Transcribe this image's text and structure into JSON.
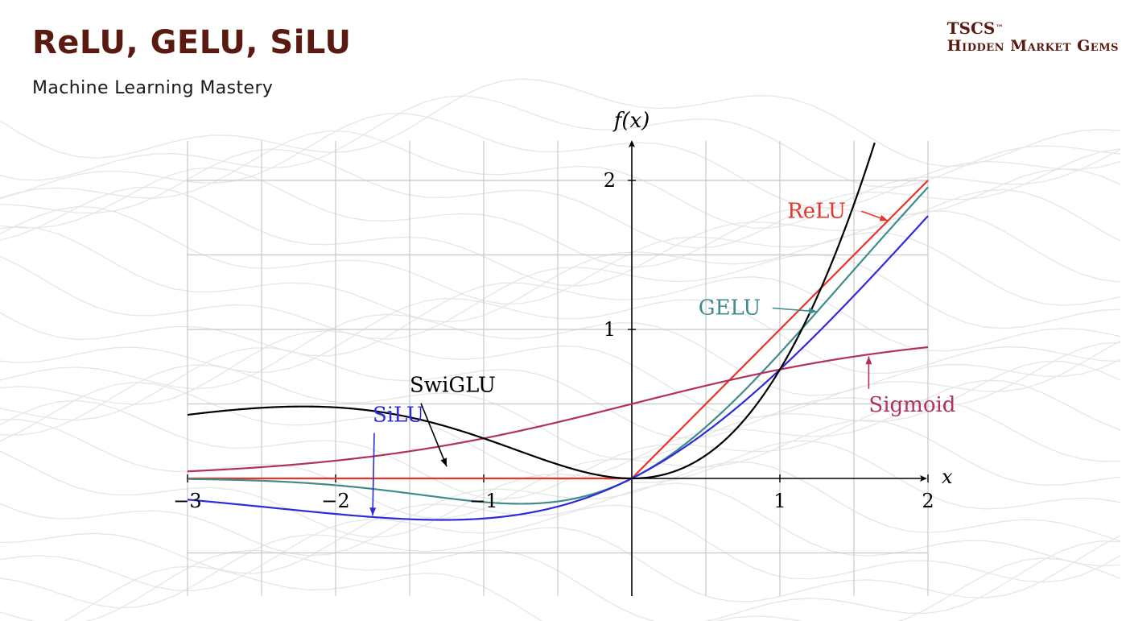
{
  "header": {
    "title": "ReLU, GELU, SiLU",
    "subtitle": "Machine Learning Mastery"
  },
  "brand": {
    "line1": "TSCS",
    "tm": "™",
    "line2": "Hidden Market Gems"
  },
  "colors": {
    "title": "#5a1a10",
    "grid": "#c8c8c8",
    "axis": "#000000"
  },
  "chart_data": {
    "type": "line",
    "xlabel": "x",
    "ylabel": "f(x)",
    "xlim": [
      -3,
      2
    ],
    "ylim": [
      -0.8,
      2.3
    ],
    "grid": true,
    "x_ticks": [
      {
        "value": -3,
        "label": "−3"
      },
      {
        "value": -2,
        "label": "−2"
      },
      {
        "value": -1,
        "label": "−1"
      },
      {
        "value": 1,
        "label": "1"
      },
      {
        "value": 2,
        "label": "2"
      }
    ],
    "y_ticks": [
      {
        "value": 1,
        "label": "1"
      },
      {
        "value": 2,
        "label": "2"
      }
    ],
    "series": [
      {
        "name": "ReLU",
        "color": "#e8352a",
        "fn": "relu"
      },
      {
        "name": "GELU",
        "color": "#3f8c8a",
        "fn": "gelu"
      },
      {
        "name": "SiLU",
        "color": "#2d2bdc",
        "fn": "silu"
      },
      {
        "name": "Sigmoid",
        "color": "#b0325a",
        "fn": "sigmoid"
      },
      {
        "name": "SwiGLU",
        "color": "#000000",
        "fn": "swiglu"
      }
    ],
    "annotations": [
      {
        "series": "ReLU",
        "label": "ReLU",
        "label_x": 1.05,
        "label_y": 1.75,
        "arrow_to": [
          1.73,
          1.73
        ]
      },
      {
        "series": "GELU",
        "label": "GELU",
        "label_x": 0.45,
        "label_y": 1.1,
        "arrow_to": [
          1.25,
          1.12
        ]
      },
      {
        "series": "SiLU",
        "label": "SiLU",
        "label_x": -1.75,
        "label_y": 0.38,
        "arrow_to": [
          -1.75,
          -0.25
        ]
      },
      {
        "series": "Sigmoid",
        "label": "Sigmoid",
        "label_x": 1.6,
        "label_y": 0.45,
        "arrow_to": [
          1.6,
          0.82
        ]
      },
      {
        "series": "SwiGLU",
        "label": "SwiGLU",
        "label_x": -1.5,
        "label_y": 0.58,
        "arrow_to": [
          -1.25,
          0.08
        ]
      }
    ]
  }
}
